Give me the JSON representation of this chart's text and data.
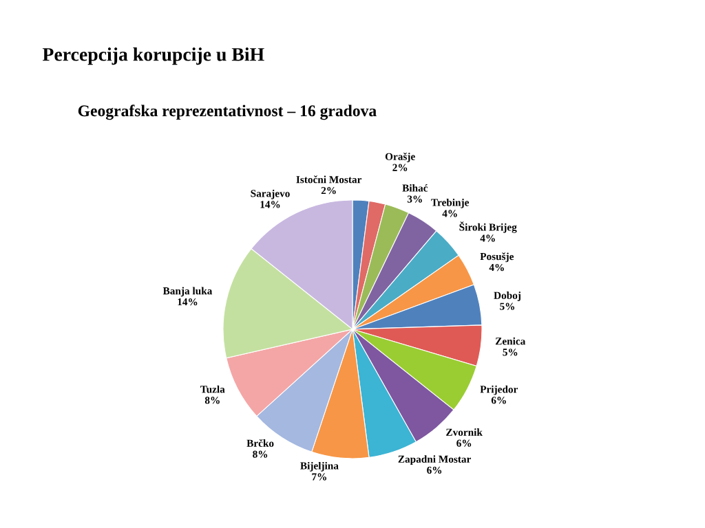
{
  "chart_data": {
    "type": "pie",
    "title": "Percepcija korupcije u BiH",
    "subtitle": "Geografska reprezentativnost – 16 gradova",
    "categories": [
      "Istočni Mostar",
      "Orašje",
      "Bihać",
      "Trebinje",
      "Široki Brijeg",
      "Posušje",
      "Doboj",
      "Zenica",
      "Prijedor",
      "Zvornik",
      "Zapadni Mostar",
      "Bijeljina",
      "Brčko",
      "Tuzla",
      "Banja luka",
      "Sarajevo"
    ],
    "values": [
      2,
      2,
      3,
      4,
      4,
      4,
      5,
      5,
      6,
      6,
      6,
      7,
      8,
      8,
      14,
      14
    ],
    "value_labels": [
      "2%",
      "2%",
      "3%",
      "4%",
      "4%",
      "4%",
      "5%",
      "5%",
      "6%",
      "6%",
      "6%",
      "7%",
      "8%",
      "8%",
      "14%",
      "14%"
    ],
    "colors": [
      "#4f81bd",
      "#e06a66",
      "#9bbb59",
      "#8064a2",
      "#4bacc6",
      "#f79646",
      "#4f81bd",
      "#e05a55",
      "#9acd32",
      "#7e57a0",
      "#3cb4d4",
      "#f79646",
      "#a4b8e0",
      "#f4a6a6",
      "#c4e0a0",
      "#c8b8e0"
    ],
    "legend": false
  }
}
